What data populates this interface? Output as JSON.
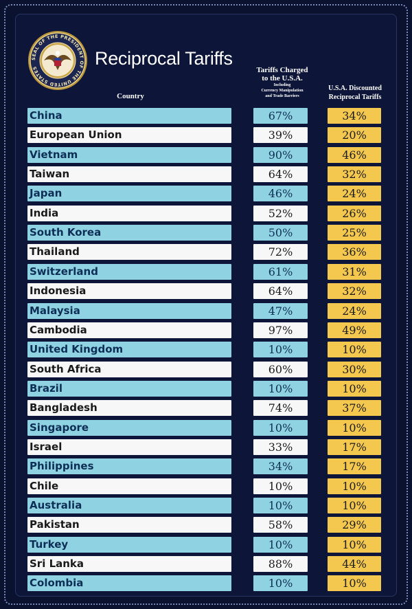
{
  "header": {
    "title": "Reciprocal Tariffs",
    "seal_text": "SEAL OF THE PRESIDENT OF THE UNITED STATES",
    "col_country": "Country",
    "col_charged_line1": "Tariffs Charged",
    "col_charged_line2": "to the U.S.A.",
    "col_charged_sub1": "Including",
    "col_charged_sub2": "Currency Manipulation",
    "col_charged_sub3": "and Trade Barriers",
    "col_disc_line1": "U.S.A. Discounted",
    "col_disc_line2": "Reciprocal Tariffs"
  },
  "colors": {
    "background": "#0b1230",
    "blue_row": "#8fd3e3",
    "white_row": "#f7f7f7",
    "gold_cell": "#f4c74e"
  },
  "chart_data": {
    "type": "table",
    "title": "Reciprocal Tariffs",
    "columns": [
      "Country",
      "Tariffs Charged to the U.S.A.",
      "U.S.A. Discounted Reciprocal Tariffs"
    ],
    "rows": [
      {
        "country": "China",
        "charged": "67%",
        "discounted": "34%"
      },
      {
        "country": "European Union",
        "charged": "39%",
        "discounted": "20%"
      },
      {
        "country": "Vietnam",
        "charged": "90%",
        "discounted": "46%"
      },
      {
        "country": "Taiwan",
        "charged": "64%",
        "discounted": "32%"
      },
      {
        "country": "Japan",
        "charged": "46%",
        "discounted": "24%"
      },
      {
        "country": "India",
        "charged": "52%",
        "discounted": "26%"
      },
      {
        "country": "South Korea",
        "charged": "50%",
        "discounted": "25%"
      },
      {
        "country": "Thailand",
        "charged": "72%",
        "discounted": "36%"
      },
      {
        "country": "Switzerland",
        "charged": "61%",
        "discounted": "31%"
      },
      {
        "country": "Indonesia",
        "charged": "64%",
        "discounted": "32%"
      },
      {
        "country": "Malaysia",
        "charged": "47%",
        "discounted": "24%"
      },
      {
        "country": "Cambodia",
        "charged": "97%",
        "discounted": "49%"
      },
      {
        "country": "United Kingdom",
        "charged": "10%",
        "discounted": "10%"
      },
      {
        "country": "South Africa",
        "charged": "60%",
        "discounted": "30%"
      },
      {
        "country": "Brazil",
        "charged": "10%",
        "discounted": "10%"
      },
      {
        "country": "Bangladesh",
        "charged": "74%",
        "discounted": "37%"
      },
      {
        "country": "Singapore",
        "charged": "10%",
        "discounted": "10%"
      },
      {
        "country": "Israel",
        "charged": "33%",
        "discounted": "17%"
      },
      {
        "country": "Philippines",
        "charged": "34%",
        "discounted": "17%"
      },
      {
        "country": "Chile",
        "charged": "10%",
        "discounted": "10%"
      },
      {
        "country": "Australia",
        "charged": "10%",
        "discounted": "10%"
      },
      {
        "country": "Pakistan",
        "charged": "58%",
        "discounted": "29%"
      },
      {
        "country": "Turkey",
        "charged": "10%",
        "discounted": "10%"
      },
      {
        "country": "Sri Lanka",
        "charged": "88%",
        "discounted": "44%"
      },
      {
        "country": "Colombia",
        "charged": "10%",
        "discounted": "10%"
      }
    ]
  }
}
